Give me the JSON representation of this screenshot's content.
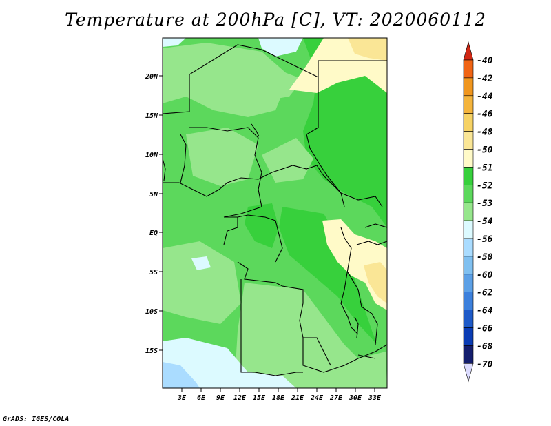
{
  "title": "Temperature at 200hPa [C], VT: 2020060112",
  "footer": "GrADS: IGES/COLA",
  "map": {
    "latitude_labels": [
      "20N",
      "15N",
      "10N",
      "5N",
      "EQ",
      "5S",
      "10S",
      "15S"
    ],
    "longitude_labels": [
      "3E",
      "6E",
      "9E",
      "12E",
      "15E",
      "18E",
      "21E",
      "24E",
      "27E",
      "30E",
      "33E"
    ]
  },
  "colorbar": {
    "labels": [
      "-40",
      "-42",
      "-44",
      "-46",
      "-48",
      "-50",
      "-51",
      "-52",
      "-53",
      "-54",
      "-56",
      "-58",
      "-60",
      "-62",
      "-64",
      "-66",
      "-68",
      "-70"
    ],
    "colors": [
      "#f03c1e",
      "#f06414",
      "#f0961e",
      "#f4b43c",
      "#f6d264",
      "#fae696",
      "#fffac8",
      "#37d03c",
      "#5cd85c",
      "#96e68c",
      "#dcfaff",
      "#aadcff",
      "#80c0f0",
      "#5ca0e6",
      "#3c80dc",
      "#1e5ac8",
      "#0a3cb4",
      "#141e6e"
    ],
    "top_arrow_color": "#d22814",
    "bottom_arrow_color": "#dcdcff"
  },
  "field_colors": {
    "c52": "#37d03c",
    "c53": "#5cd85c",
    "c54": "#96e68c",
    "c56": "#dcfaff",
    "c58": "#aadcff",
    "c51": "#fffac8",
    "c50": "#fae696",
    "coast": "#000000"
  }
}
